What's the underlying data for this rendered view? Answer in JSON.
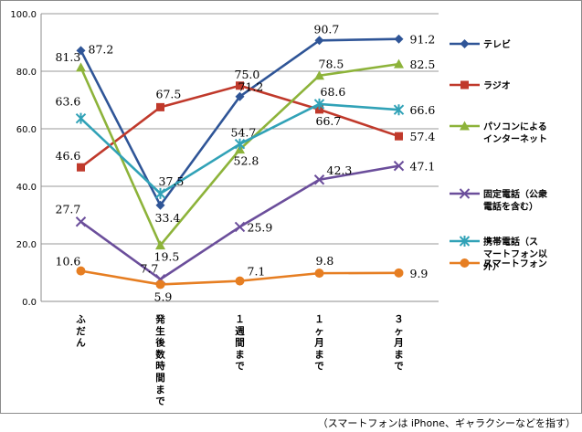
{
  "chart_data": {
    "type": "line",
    "categories": [
      "ふだん",
      "発生後数時間まで",
      "１週間まで",
      "１ヶ月まで",
      "３ヶ月まで"
    ],
    "ylim": [
      0,
      100
    ],
    "yticks": [
      "0.0",
      "20.0",
      "40.0",
      "60.0",
      "80.0",
      "100.0"
    ],
    "grid": true,
    "legend_position": "right",
    "series": [
      {
        "name": "テレビ",
        "values": [
          87.2,
          33.4,
          71.2,
          90.7,
          91.2
        ],
        "color": "#2F5597",
        "marker": "diamond"
      },
      {
        "name": "ラジオ",
        "values": [
          46.6,
          67.5,
          75.0,
          66.7,
          57.4
        ],
        "color": "#C0392B",
        "marker": "square"
      },
      {
        "name": "パソコンによるインターネット",
        "values": [
          81.3,
          19.5,
          52.8,
          78.5,
          82.5
        ],
        "color": "#8DB33A",
        "marker": "triangle"
      },
      {
        "name": "固定電話（公衆電話を含む）",
        "values": [
          27.7,
          7.7,
          25.9,
          42.3,
          47.1
        ],
        "color": "#6B4E9B",
        "marker": "x"
      },
      {
        "name": "携帯電話（スマートフォン以外）",
        "values": [
          63.6,
          37.5,
          54.7,
          68.6,
          66.6
        ],
        "color": "#31A2B7",
        "marker": "star"
      },
      {
        "name": "スマートフォン",
        "values": [
          10.6,
          5.9,
          7.1,
          9.8,
          9.9
        ],
        "color": "#E67E22",
        "marker": "circle"
      }
    ],
    "data_labels": [
      [
        "87.2",
        "33.4",
        "71.2",
        "90.7",
        "91.2"
      ],
      [
        "46.6",
        "67.5",
        "75.0",
        "66.7",
        "57.4"
      ],
      [
        "81.3",
        "19.5",
        "52.8",
        "78.5",
        "82.5"
      ],
      [
        "27.7",
        "7.7",
        "25.9",
        "42.3",
        "47.1"
      ],
      [
        "63.6",
        "37.5",
        "54.7",
        "68.6",
        "66.6"
      ],
      [
        "10.6",
        "5.9",
        "7.1",
        "9.8",
        "9.9"
      ]
    ],
    "legend_lines": [
      [
        "テレビ"
      ],
      [
        "ラジオ"
      ],
      [
        "パソコンによる",
        "インターネット"
      ],
      [
        "固定電話（公衆",
        "電話を含む）"
      ],
      [
        "携帯電話（ス",
        "マートフォン以",
        "外）"
      ],
      [
        "スマートフォン"
      ]
    ]
  },
  "footnote": "（スマートフォンは iPhone、ギャラクシーなどを指す）"
}
